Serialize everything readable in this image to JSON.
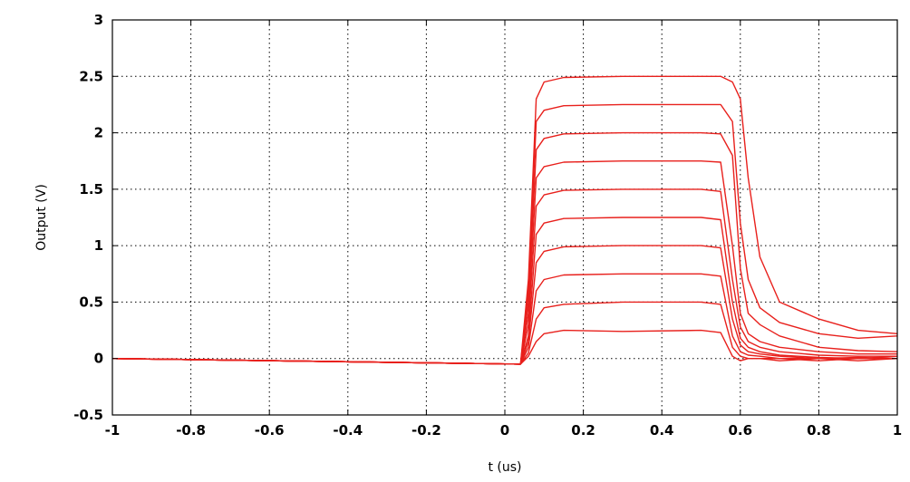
{
  "chart_data": {
    "type": "line",
    "title": "",
    "xlabel": "t (us)",
    "ylabel": "Output (V)",
    "xlim": [
      -1,
      1
    ],
    "ylim": [
      -0.5,
      3
    ],
    "xticks": [
      -1,
      -0.8,
      -0.6,
      -0.4,
      -0.2,
      0,
      0.2,
      0.4,
      0.6,
      0.8,
      1
    ],
    "yticks": [
      -0.5,
      0,
      0.5,
      1,
      1.5,
      2,
      2.5,
      3
    ],
    "xtick_labels": [
      "-1",
      "-0.8",
      "-0.6",
      "-0.4",
      "-0.2",
      "0",
      "0.2",
      "0.4",
      "0.6",
      "0.8",
      "1"
    ],
    "ytick_labels": [
      "-0.5",
      "0",
      "0.5",
      "1",
      "1.5",
      "2",
      "2.5",
      "3"
    ],
    "grid": true,
    "legend": "none",
    "color": "#e8201c",
    "series": [
      {
        "x": [
          -1,
          0.04,
          0.06,
          0.08,
          0.1,
          0.15,
          0.3,
          0.5,
          0.55,
          0.58,
          0.6,
          0.62,
          0.65,
          0.7,
          0.8,
          0.9,
          1
        ],
        "y": [
          0,
          -0.05,
          0.02,
          0.15,
          0.22,
          0.25,
          0.24,
          0.25,
          0.23,
          0.02,
          -0.02,
          0.0,
          0.0,
          -0.02,
          0.0,
          0.01,
          0.0
        ]
      },
      {
        "x": [
          -1,
          0.04,
          0.06,
          0.08,
          0.1,
          0.15,
          0.3,
          0.5,
          0.55,
          0.58,
          0.6,
          0.62,
          0.65,
          0.7,
          0.8,
          0.9,
          1
        ],
        "y": [
          0,
          -0.05,
          0.05,
          0.35,
          0.45,
          0.48,
          0.5,
          0.5,
          0.48,
          0.1,
          0.02,
          0.0,
          0.0,
          0.0,
          -0.02,
          0.0,
          0.02
        ]
      },
      {
        "x": [
          -1,
          0.04,
          0.06,
          0.08,
          0.1,
          0.15,
          0.3,
          0.5,
          0.55,
          0.58,
          0.6,
          0.62,
          0.65,
          0.7,
          0.8,
          0.9,
          1
        ],
        "y": [
          0,
          -0.05,
          0.1,
          0.6,
          0.7,
          0.74,
          0.75,
          0.75,
          0.73,
          0.2,
          0.06,
          0.03,
          0.02,
          0.0,
          0.0,
          -0.02,
          0.0
        ]
      },
      {
        "x": [
          -1,
          0.04,
          0.06,
          0.08,
          0.1,
          0.15,
          0.3,
          0.5,
          0.55,
          0.58,
          0.6,
          0.62,
          0.65,
          0.7,
          0.8,
          0.9,
          1
        ],
        "y": [
          0,
          -0.05,
          0.15,
          0.85,
          0.95,
          0.99,
          1.0,
          1.0,
          0.98,
          0.35,
          0.12,
          0.06,
          0.04,
          0.02,
          0.0,
          0.0,
          0.0
        ]
      },
      {
        "x": [
          -1,
          0.04,
          0.06,
          0.08,
          0.1,
          0.15,
          0.3,
          0.5,
          0.55,
          0.58,
          0.6,
          0.62,
          0.65,
          0.7,
          0.8,
          0.9,
          1
        ],
        "y": [
          0,
          -0.05,
          0.2,
          1.1,
          1.2,
          1.24,
          1.25,
          1.25,
          1.23,
          0.5,
          0.18,
          0.1,
          0.06,
          0.03,
          0.01,
          0.0,
          0.0
        ]
      },
      {
        "x": [
          -1,
          0.04,
          0.06,
          0.08,
          0.1,
          0.15,
          0.3,
          0.5,
          0.55,
          0.58,
          0.6,
          0.62,
          0.65,
          0.7,
          0.8,
          0.9,
          1
        ],
        "y": [
          0,
          -0.05,
          0.3,
          1.35,
          1.45,
          1.49,
          1.5,
          1.5,
          1.48,
          0.7,
          0.28,
          0.15,
          0.1,
          0.06,
          0.03,
          0.02,
          0.02
        ]
      },
      {
        "x": [
          -1,
          0.04,
          0.06,
          0.08,
          0.1,
          0.15,
          0.3,
          0.5,
          0.55,
          0.58,
          0.6,
          0.62,
          0.65,
          0.7,
          0.8,
          0.9,
          1
        ],
        "y": [
          0,
          -0.05,
          0.4,
          1.6,
          1.7,
          1.74,
          1.75,
          1.75,
          1.74,
          1.0,
          0.4,
          0.22,
          0.15,
          0.1,
          0.06,
          0.04,
          0.04
        ]
      },
      {
        "x": [
          -1,
          0.04,
          0.06,
          0.08,
          0.1,
          0.15,
          0.3,
          0.5,
          0.55,
          0.58,
          0.6,
          0.62,
          0.65,
          0.7,
          0.8,
          0.9,
          1
        ],
        "y": [
          0,
          -0.05,
          0.5,
          1.85,
          1.95,
          1.99,
          2.0,
          2.0,
          1.99,
          1.8,
          0.8,
          0.4,
          0.3,
          0.2,
          0.1,
          0.07,
          0.06
        ]
      },
      {
        "x": [
          -1,
          0.04,
          0.06,
          0.08,
          0.1,
          0.15,
          0.3,
          0.5,
          0.55,
          0.58,
          0.6,
          0.62,
          0.65,
          0.7,
          0.8,
          0.9,
          1
        ],
        "y": [
          0,
          -0.05,
          0.6,
          2.1,
          2.2,
          2.24,
          2.25,
          2.25,
          2.25,
          2.1,
          1.2,
          0.7,
          0.45,
          0.32,
          0.22,
          0.18,
          0.2
        ]
      },
      {
        "x": [
          -1,
          0.04,
          0.06,
          0.08,
          0.1,
          0.15,
          0.3,
          0.5,
          0.55,
          0.58,
          0.6,
          0.62,
          0.65,
          0.7,
          0.8,
          0.9,
          1
        ],
        "y": [
          0,
          -0.05,
          0.7,
          2.3,
          2.45,
          2.49,
          2.5,
          2.5,
          2.5,
          2.45,
          2.3,
          1.6,
          0.9,
          0.5,
          0.35,
          0.25,
          0.22
        ]
      }
    ]
  }
}
